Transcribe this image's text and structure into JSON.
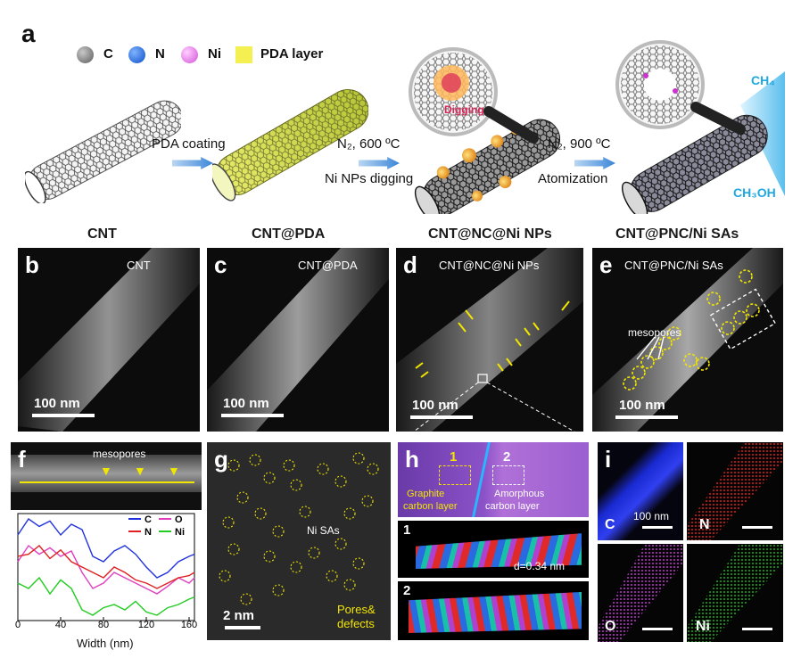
{
  "panel_a": {
    "label": "a",
    "legend": [
      {
        "name": "C",
        "color": "#7d7d7d"
      },
      {
        "name": "N",
        "color": "#1f6fe0"
      },
      {
        "name": "Ni",
        "color": "#e37ae6"
      },
      {
        "name": "PDA layer",
        "color": "#f5f052"
      }
    ],
    "steps": [
      "PDA coating",
      "N₂, 600 ºC",
      "Ni NPs digging",
      "N₂, 900 ºC",
      "Atomization"
    ],
    "digging": "Digging",
    "ch4": "CH₄",
    "ch3oh": "CH₃OH"
  },
  "headers": [
    "CNT",
    "CNT@PDA",
    "CNT@NC@Ni NPs",
    "CNT@PNC/Ni SAs"
  ],
  "panels": [
    {
      "label": "b",
      "title": "CNT",
      "scale": "100 nm"
    },
    {
      "label": "c",
      "title": "CNT@PDA",
      "scale": "100 nm"
    },
    {
      "label": "d",
      "title": "CNT@NC@Ni NPs",
      "scale": "100 nm"
    },
    {
      "label": "e",
      "title": "CNT@PNC/Ni SAs",
      "scale": "100 nm",
      "annotation": "mesopores"
    }
  ],
  "panel_f": {
    "label": "f",
    "annotation": "mesopores",
    "xlabel": "Width (nm)",
    "xticks": [
      "0",
      "40",
      "80",
      "120",
      "160"
    ],
    "legend": [
      {
        "name": "C",
        "color": "#2233dd"
      },
      {
        "name": "O",
        "color": "#e040c0"
      },
      {
        "name": "N",
        "color": "#e02020"
      },
      {
        "name": "Ni",
        "color": "#22cc22"
      }
    ]
  },
  "panel_g": {
    "label": "g",
    "ni": "Ni SAs",
    "pores_line1": "Pores&",
    "pores_line2": "defects",
    "scale": "2 nm"
  },
  "panel_h": {
    "label": "h",
    "box1": "1",
    "box2": "2",
    "graphite_line1": "Graphite",
    "graphite_line2": "carbon layer",
    "amorph_line1": "Amorphous",
    "amorph_line2": "carbon layer",
    "sub1": "1",
    "sub2": "2",
    "spacing": "d=0.34 nm"
  },
  "panel_i": {
    "label": "i",
    "scale": "100 nm",
    "maps": [
      {
        "element": "C",
        "color": "#1a2ad0"
      },
      {
        "element": "N",
        "color": "#d01a1a"
      },
      {
        "element": "O",
        "color": "#a020b0"
      },
      {
        "element": "Ni",
        "color": "#1a9a1a"
      }
    ]
  },
  "chart_data": {
    "type": "line",
    "title": "",
    "xlabel": "Width (nm)",
    "ylabel": "",
    "xlim": [
      0,
      165
    ],
    "xticks": [
      0,
      40,
      80,
      120,
      160
    ],
    "series": [
      {
        "name": "C",
        "x": [
          0,
          10,
          20,
          30,
          40,
          50,
          60,
          70,
          80,
          90,
          100,
          110,
          120,
          130,
          140,
          150,
          160,
          165
        ],
        "values": [
          0.8,
          0.95,
          0.88,
          0.93,
          0.8,
          0.9,
          0.85,
          0.6,
          0.55,
          0.65,
          0.7,
          0.62,
          0.5,
          0.4,
          0.45,
          0.55,
          0.6,
          0.62
        ]
      },
      {
        "name": "O",
        "x": [
          0,
          10,
          20,
          30,
          40,
          50,
          60,
          70,
          80,
          90,
          100,
          110,
          120,
          130,
          140,
          150,
          160,
          165
        ],
        "values": [
          0.55,
          0.7,
          0.62,
          0.68,
          0.6,
          0.65,
          0.45,
          0.3,
          0.35,
          0.45,
          0.4,
          0.35,
          0.3,
          0.25,
          0.32,
          0.4,
          0.35,
          0.4
        ]
      },
      {
        "name": "N",
        "x": [
          0,
          10,
          20,
          30,
          40,
          50,
          60,
          70,
          80,
          90,
          100,
          110,
          120,
          130,
          140,
          150,
          160,
          165
        ],
        "values": [
          0.6,
          0.62,
          0.7,
          0.58,
          0.66,
          0.55,
          0.5,
          0.45,
          0.4,
          0.5,
          0.45,
          0.38,
          0.35,
          0.3,
          0.35,
          0.4,
          0.42,
          0.45
        ]
      },
      {
        "name": "Ni",
        "x": [
          0,
          10,
          20,
          30,
          40,
          50,
          60,
          70,
          80,
          90,
          100,
          110,
          120,
          130,
          140,
          150,
          160,
          165
        ],
        "values": [
          0.35,
          0.3,
          0.4,
          0.25,
          0.38,
          0.3,
          0.1,
          0.05,
          0.12,
          0.15,
          0.1,
          0.18,
          0.08,
          0.05,
          0.12,
          0.15,
          0.2,
          0.22
        ]
      }
    ]
  }
}
